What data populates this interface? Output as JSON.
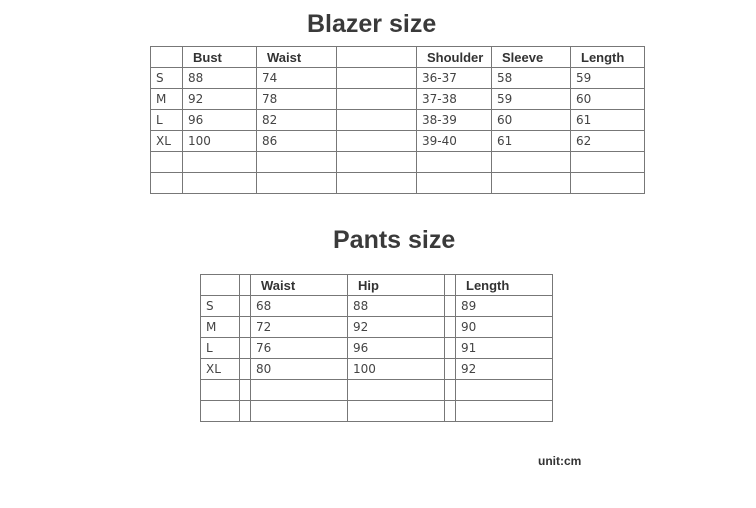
{
  "blazer": {
    "title": "Blazer size",
    "headers": [
      "",
      "Bust",
      "Waist",
      "",
      "Shoulder",
      "Sleeve",
      "Length"
    ],
    "rows": [
      [
        "S",
        "88",
        "74",
        "",
        "36-37",
        "58",
        "59"
      ],
      [
        "M",
        "92",
        "78",
        "",
        "37-38",
        "59",
        "60"
      ],
      [
        "L",
        "96",
        "82",
        "",
        "38-39",
        "60",
        "61"
      ],
      [
        "XL",
        "100",
        "86",
        "",
        "39-40",
        "61",
        "62"
      ],
      [
        "",
        "",
        "",
        "",
        "",
        "",
        ""
      ],
      [
        "",
        "",
        "",
        "",
        "",
        "",
        ""
      ]
    ]
  },
  "pants": {
    "title": "Pants size",
    "headers": [
      "",
      "",
      "Waist",
      "Hip",
      "",
      "Length"
    ],
    "rows": [
      [
        "S",
        "",
        "68",
        "88",
        "",
        "89"
      ],
      [
        "M",
        "",
        "72",
        "92",
        "",
        "90"
      ],
      [
        "L",
        "",
        "76",
        "96",
        "",
        "91"
      ],
      [
        "XL",
        "",
        "80",
        "100",
        "",
        "92"
      ],
      [
        "",
        "",
        "",
        "",
        "",
        ""
      ],
      [
        "",
        "",
        "",
        "",
        "",
        ""
      ]
    ]
  },
  "unit": "unit:cm"
}
